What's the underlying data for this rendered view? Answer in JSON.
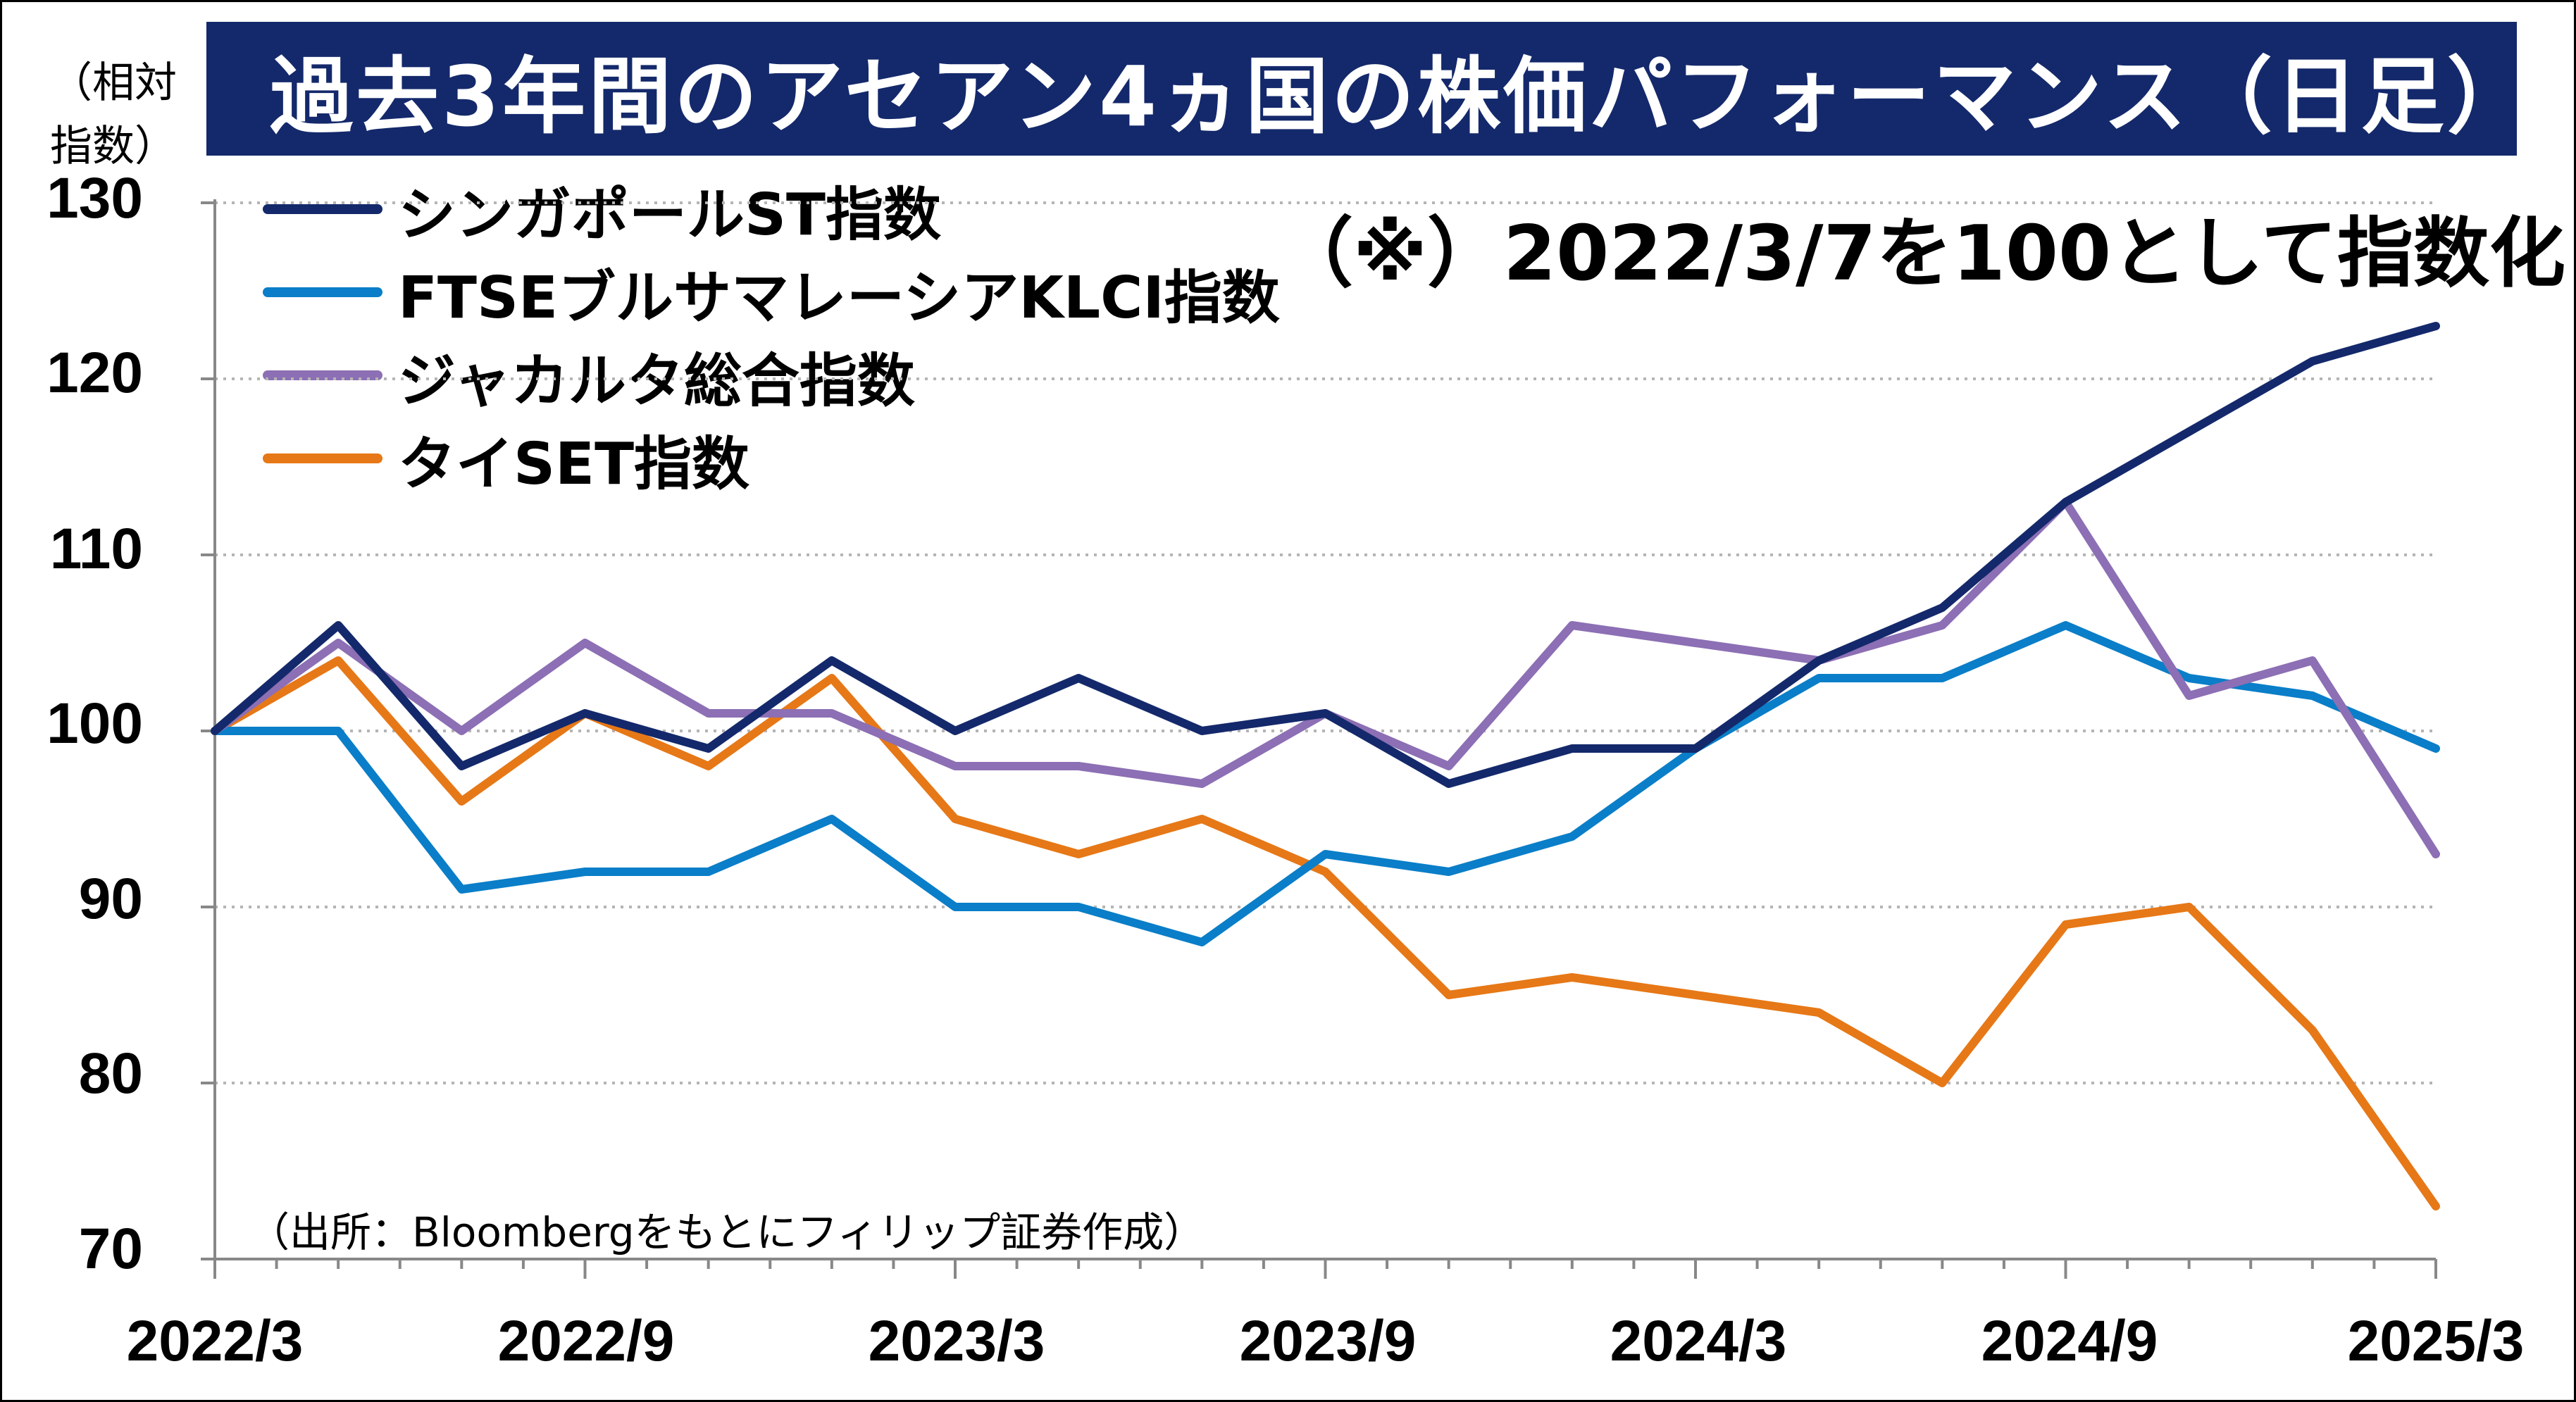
{
  "title": "過去3年間のアセアン4ヵ国の株価パフォーマンス（日足）",
  "y_unit_line1": "（相対",
  "y_unit_line2": "指数）",
  "note": "（※）2022/3/7を100として指数化",
  "source": "（出所：Bloombergをもとにフィリップ証券作成）",
  "colors": {
    "title_bg": "#14296b",
    "grid": "#b5b5b5"
  },
  "chart_data": {
    "type": "line",
    "title": "過去3年間のアセアン4ヵ国の株価パフォーマンス（日足）",
    "ylim": [
      70,
      130
    ],
    "yticks": [
      "130",
      "120",
      "110",
      "100",
      "90",
      "80",
      "70"
    ],
    "xticks": [
      "2022/3",
      "2022/9",
      "2023/3",
      "2023/9",
      "2024/3",
      "2024/9",
      "2025/3"
    ],
    "grid": "horizontal dotted",
    "legend_position": "top-left",
    "x": [
      "2022/3",
      "2022/5",
      "2022/7",
      "2022/9",
      "2022/11",
      "2023/1",
      "2023/3",
      "2023/5",
      "2023/7",
      "2023/9",
      "2023/11",
      "2024/1",
      "2024/3",
      "2024/5",
      "2024/7",
      "2024/9",
      "2024/11",
      "2025/1",
      "2025/3"
    ],
    "series": [
      {
        "name": "シンガポールST指数",
        "color": "#14296b",
        "values": [
          100,
          106,
          98,
          101,
          99,
          104,
          100,
          103,
          100,
          101,
          97,
          99,
          99,
          104,
          107,
          113,
          117,
          121,
          123
        ]
      },
      {
        "name": "FTSEブルサマレーシアKLCI指数",
        "color": "#0a7ec8",
        "values": [
          100,
          100,
          91,
          92,
          92,
          95,
          90,
          90,
          88,
          93,
          92,
          94,
          99,
          103,
          103,
          106,
          103,
          102,
          99
        ]
      },
      {
        "name": "ジャカルタ総合指数",
        "color": "#8c6fb4",
        "values": [
          100,
          105,
          100,
          105,
          101,
          101,
          98,
          98,
          97,
          101,
          98,
          106,
          105,
          104,
          106,
          113,
          102,
          104,
          93
        ]
      },
      {
        "name": "タイSET指数",
        "color": "#e67817",
        "values": [
          100,
          104,
          96,
          101,
          98,
          103,
          95,
          93,
          95,
          92,
          85,
          86,
          85,
          84,
          80,
          89,
          90,
          83,
          73
        ]
      }
    ]
  }
}
